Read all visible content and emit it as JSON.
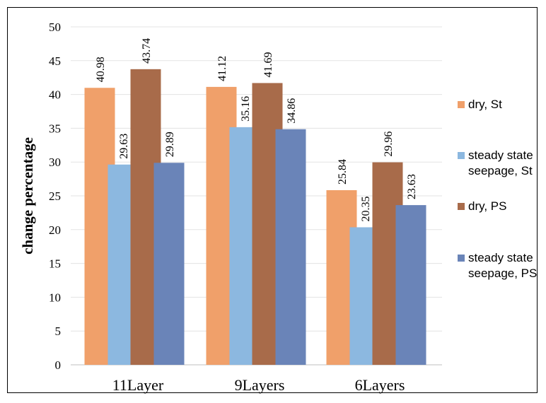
{
  "chart_data": {
    "type": "bar",
    "categories": [
      "11Layer",
      "9Layers",
      "6Layers"
    ],
    "series": [
      {
        "name": "dry, St",
        "values": [
          40.98,
          41.12,
          25.84
        ],
        "color": "#f0a06a"
      },
      {
        "name": "steady state seepage, St",
        "values": [
          29.63,
          35.16,
          20.35
        ],
        "color": "#8cb8e0"
      },
      {
        "name": "dry, PS",
        "values": [
          43.74,
          41.69,
          29.96
        ],
        "color": "#a86b4a"
      },
      {
        "name": "steady state seepage, PS",
        "values": [
          29.89,
          34.86,
          23.63
        ],
        "color": "#6a84b8"
      }
    ],
    "data_labels": [
      [
        "40.98",
        "41.12",
        "25.84"
      ],
      [
        "29.63",
        "35.16",
        "20.35"
      ],
      [
        "43.74",
        "41.69",
        "29.96"
      ],
      [
        "29.89",
        "34.86",
        "23.63"
      ]
    ],
    "title": "",
    "xlabel": "",
    "ylabel": "change percentage",
    "ylim": [
      0,
      50
    ],
    "yticks": [
      0,
      5,
      10,
      15,
      20,
      25,
      30,
      35,
      40,
      45,
      50
    ],
    "ytick_labels": [
      "0",
      "5",
      "10",
      "15",
      "20",
      "25",
      "30",
      "35",
      "40",
      "45",
      "50"
    ],
    "grid": true,
    "legend_position": "right",
    "legend_lines": [
      [
        "dry, St"
      ],
      [
        "steady state",
        "seepage, St"
      ],
      [
        "dry, PS"
      ],
      [
        "steady state",
        "seepage, PS"
      ]
    ]
  }
}
